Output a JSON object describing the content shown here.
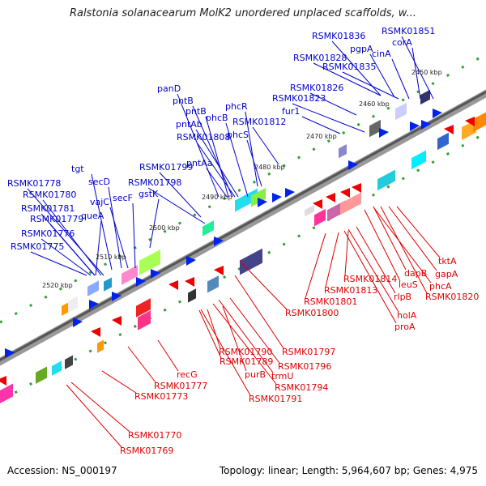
{
  "title": "Ralstonia solanacearum MolK2 unordered unplaced scaffolds, w...",
  "footer": {
    "accession": "Accession: NS_000197",
    "topology": "Topology: linear; Length: 5,964,607 bp; Genes: 4,975"
  },
  "colors": {
    "upper_labels": "#0000cc",
    "lower_labels": "#dd0000",
    "backbone": "#888888",
    "ticks": "#228822"
  },
  "kbp_markers": [
    "2450 kbp",
    "2460 kbp",
    "2470 kbp",
    "2480 kbp",
    "2490 kbp",
    "2500 kbp",
    "2510 kbp",
    "2520 kbp"
  ],
  "upper_labels": [
    "RSMK01836",
    "RSMK01851",
    "pgpA",
    "corA",
    "RSMK01828",
    "cinA",
    "RSMK01835",
    "panD",
    "RSMK01826",
    "pntB",
    "RSMK01823",
    "pntB",
    "phcR",
    "fur1",
    "phcB",
    "pntAb",
    "RSMK01812",
    "phcS",
    "RSMK01808",
    "tgt",
    "RSMK01799",
    "pntAa",
    "RSMK01778",
    "secD",
    "RSMK01798",
    "RSMK01780",
    "vajC",
    "secF",
    "gstK",
    "RSMK01781",
    "queA",
    "RSMK01779",
    "RSMK01776",
    "RSMK01775"
  ],
  "lower_labels": [
    "tktA",
    "gapA",
    "dapB",
    "phcA",
    "leuS",
    "RSMK01820",
    "RSMK01814",
    "rlpB",
    "RSMK01813",
    "RSMK01801",
    "holA",
    "RSMK01800",
    "proA",
    "RSMK01797",
    "RSMK01790",
    "RSMK01796",
    "RSMK01789",
    "purB",
    "trmU",
    "recG",
    "RSMK01794",
    "RSMK01777",
    "RSMK01791",
    "RSMK01773",
    "RSMK01770",
    "RSMK01769"
  ]
}
